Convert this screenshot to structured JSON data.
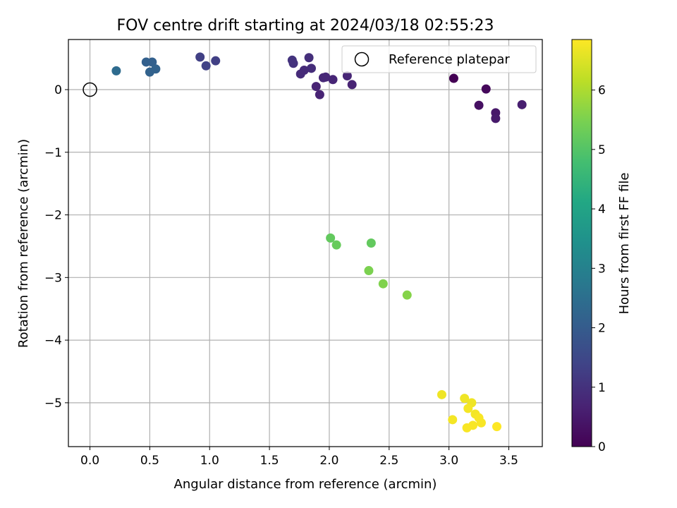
{
  "chart_data": {
    "type": "scatter",
    "title": "FOV centre drift starting at 2024/03/18 02:55:23",
    "xlabel": "Angular distance from reference (arcmin)",
    "ylabel": "Rotation from reference (arcmin)",
    "xlim": [
      -0.18,
      3.78
    ],
    "ylim": [
      -5.7,
      0.8
    ],
    "xticks": [
      0.0,
      0.5,
      1.0,
      1.5,
      2.0,
      2.5,
      3.0,
      3.5
    ],
    "xtick_labels": [
      "0.0",
      "0.5",
      "1.0",
      "1.5",
      "2.0",
      "2.5",
      "3.0",
      "3.5"
    ],
    "yticks": [
      0,
      -1,
      -2,
      -3,
      -4,
      -5
    ],
    "ytick_labels": [
      "0",
      "−1",
      "−2",
      "−3",
      "−4",
      "−5"
    ],
    "grid": true,
    "legend": {
      "position": "top-right",
      "entries": [
        "Reference platepar"
      ]
    },
    "reference_point": {
      "x": 0.0,
      "y": 0.0,
      "label": "Reference platepar"
    },
    "colorbar": {
      "label": "Hours from first FF file",
      "colormap": "viridis",
      "range": [
        0,
        6.85
      ],
      "ticks": [
        0,
        1,
        2,
        3,
        4,
        5,
        6
      ],
      "tick_labels": [
        "0",
        "1",
        "2",
        "3",
        "4",
        "5",
        "6"
      ]
    },
    "points": [
      {
        "x": 3.04,
        "y": 0.18,
        "hours": 0.0
      },
      {
        "x": 3.31,
        "y": 0.01,
        "hours": 0.15
      },
      {
        "x": 3.25,
        "y": -0.25,
        "hours": 0.3
      },
      {
        "x": 3.39,
        "y": -0.37,
        "hours": 0.45
      },
      {
        "x": 3.39,
        "y": -0.46,
        "hours": 0.5
      },
      {
        "x": 3.61,
        "y": -0.24,
        "hours": 0.6
      },
      {
        "x": 1.69,
        "y": 0.47,
        "hours": 1.05
      },
      {
        "x": 1.7,
        "y": 0.42,
        "hours": 1.0
      },
      {
        "x": 1.83,
        "y": 0.51,
        "hours": 0.95
      },
      {
        "x": 1.85,
        "y": 0.34,
        "hours": 0.9
      },
      {
        "x": 1.79,
        "y": 0.31,
        "hours": 0.85
      },
      {
        "x": 1.76,
        "y": 0.25,
        "hours": 0.85
      },
      {
        "x": 1.95,
        "y": 0.19,
        "hours": 0.8
      },
      {
        "x": 1.97,
        "y": 0.2,
        "hours": 0.8
      },
      {
        "x": 2.03,
        "y": 0.16,
        "hours": 0.75
      },
      {
        "x": 2.15,
        "y": 0.22,
        "hours": 0.75
      },
      {
        "x": 1.89,
        "y": 0.05,
        "hours": 0.7
      },
      {
        "x": 1.92,
        "y": -0.08,
        "hours": 0.7
      },
      {
        "x": 2.19,
        "y": 0.08,
        "hours": 0.7
      },
      {
        "x": 0.92,
        "y": 0.52,
        "hours": 1.3
      },
      {
        "x": 0.97,
        "y": 0.38,
        "hours": 1.35
      },
      {
        "x": 1.05,
        "y": 0.46,
        "hours": 1.3
      },
      {
        "x": 0.22,
        "y": 0.3,
        "hours": 2.4
      },
      {
        "x": 0.47,
        "y": 0.44,
        "hours": 2.1
      },
      {
        "x": 0.52,
        "y": 0.44,
        "hours": 2.1
      },
      {
        "x": 0.5,
        "y": 0.28,
        "hours": 2.15
      },
      {
        "x": 0.55,
        "y": 0.33,
        "hours": 2.15
      },
      {
        "x": 2.01,
        "y": -2.37,
        "hours": 5.2
      },
      {
        "x": 2.06,
        "y": -2.48,
        "hours": 5.25
      },
      {
        "x": 2.35,
        "y": -2.45,
        "hours": 5.2
      },
      {
        "x": 2.33,
        "y": -2.89,
        "hours": 5.5
      },
      {
        "x": 2.45,
        "y": -3.1,
        "hours": 5.55
      },
      {
        "x": 2.65,
        "y": -3.28,
        "hours": 5.6
      },
      {
        "x": 2.94,
        "y": -4.87,
        "hours": 6.7
      },
      {
        "x": 3.03,
        "y": -5.27,
        "hours": 6.75
      },
      {
        "x": 3.13,
        "y": -4.93,
        "hours": 6.7
      },
      {
        "x": 3.19,
        "y": -5.0,
        "hours": 6.7
      },
      {
        "x": 3.16,
        "y": -5.09,
        "hours": 6.75
      },
      {
        "x": 3.22,
        "y": -5.18,
        "hours": 6.75
      },
      {
        "x": 3.25,
        "y": -5.24,
        "hours": 6.8
      },
      {
        "x": 3.27,
        "y": -5.32,
        "hours": 6.8
      },
      {
        "x": 3.2,
        "y": -5.36,
        "hours": 6.8
      },
      {
        "x": 3.15,
        "y": -5.4,
        "hours": 6.8
      },
      {
        "x": 3.4,
        "y": -5.38,
        "hours": 6.85
      }
    ]
  }
}
